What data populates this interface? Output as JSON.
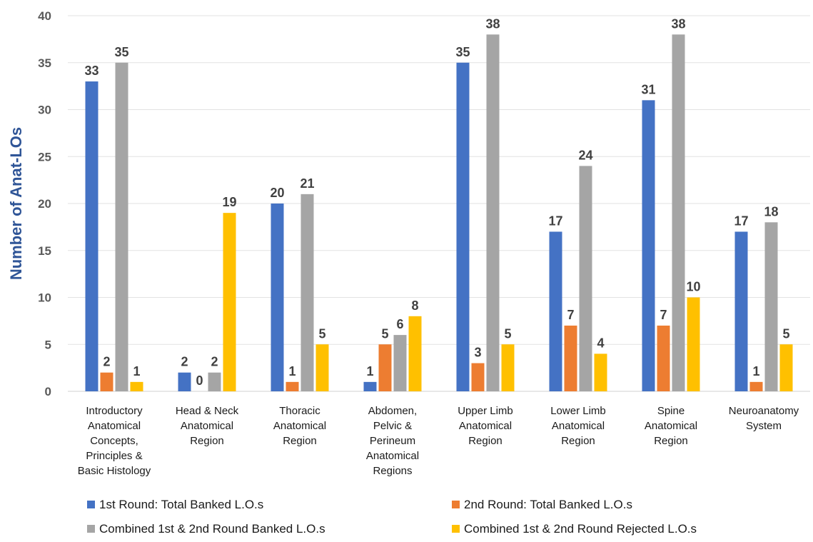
{
  "chart_data": {
    "type": "bar",
    "ylabel": "Number of Anat-LOs",
    "xlabel": "",
    "ylim": [
      0,
      40
    ],
    "yticks": [
      0,
      5,
      10,
      15,
      20,
      25,
      30,
      35,
      40
    ],
    "grid": true,
    "legend_position": "bottom",
    "categories": [
      [
        "Introductory",
        "Anatomical",
        "Concepts,",
        "Principles &",
        "Basic Histology"
      ],
      [
        "Head & Neck",
        "Anatomical",
        "Region"
      ],
      [
        "Thoracic",
        "Anatomical",
        "Region"
      ],
      [
        "Abdomen,",
        "Pelvic &",
        "Perineum",
        "Anatomical",
        "Regions"
      ],
      [
        "Upper Limb",
        "Anatomical",
        "Region"
      ],
      [
        "Lower Limb",
        "Anatomical",
        "Region"
      ],
      [
        "Spine",
        "Anatomical",
        "Region"
      ],
      [
        "Neuroanatomy",
        "System"
      ]
    ],
    "series": [
      {
        "name": "1st Round: Total Banked L.O.s",
        "color": "#4472c4",
        "values": [
          33,
          2,
          20,
          1,
          35,
          17,
          31,
          17
        ]
      },
      {
        "name": "2nd Round: Total Banked L.O.s",
        "color": "#ed7d31",
        "values": [
          2,
          0,
          1,
          5,
          3,
          7,
          7,
          1
        ]
      },
      {
        "name": "Combined 1st & 2nd Round Banked L.O.s",
        "color": "#a5a5a5",
        "values": [
          35,
          2,
          21,
          6,
          38,
          24,
          38,
          18
        ]
      },
      {
        "name": "Combined 1st & 2nd Round Rejected L.O.s",
        "color": "#ffc000",
        "values": [
          1,
          19,
          5,
          8,
          5,
          4,
          10,
          5
        ]
      }
    ],
    "data_labels": [
      [
        33,
        2,
        20,
        1,
        35,
        17,
        31,
        17
      ],
      [
        2,
        0,
        1,
        5,
        3,
        7,
        7,
        1
      ],
      [
        35,
        2,
        21,
        6,
        38,
        24,
        38,
        18
      ],
      [
        1,
        19,
        5,
        8,
        5,
        4,
        10,
        5
      ]
    ]
  }
}
